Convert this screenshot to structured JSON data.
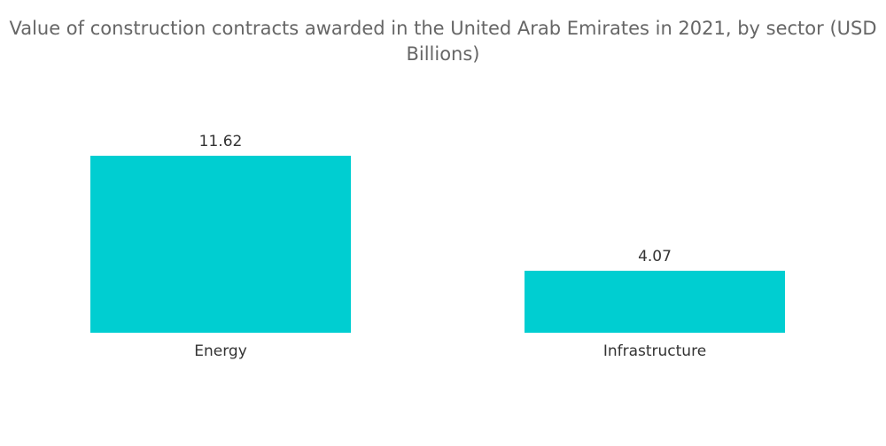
{
  "chart_data": {
    "type": "bar",
    "title": "Value of construction contracts awarded in the United Arab Emirates in 2021, by sector (USD Billions)",
    "categories": [
      "Energy",
      "Infrastructure"
    ],
    "values": [
      11.62,
      4.07
    ],
    "value_labels": [
      "11.62",
      "4.07"
    ],
    "xlabel": "",
    "ylabel": "",
    "ylim": [
      0,
      11.62
    ],
    "grid": false,
    "legend": "none",
    "bar_color": "#00CED1"
  }
}
